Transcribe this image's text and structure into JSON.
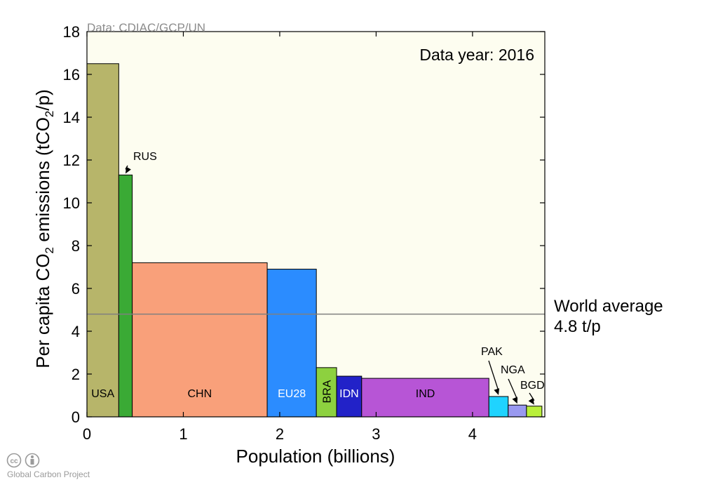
{
  "chart_data": {
    "type": "bar",
    "source_note": "Data: CDIAC/GCP/UN",
    "annotation_year": "Data year: 2016",
    "ylabel": "Per capita CO",
    "ylabel_sub": "2",
    "ylabel_mid": " emissions (tCO",
    "ylabel_sub2": "2",
    "ylabel_end": "/p)",
    "xlabel": "Population (billions)",
    "xlim": [
      0,
      4.75
    ],
    "ylim": [
      0,
      18
    ],
    "x_ticks": [
      "0",
      "1",
      "2",
      "3",
      "4"
    ],
    "y_ticks": [
      "0",
      "2",
      "4",
      "6",
      "8",
      "10",
      "12",
      "14",
      "16",
      "18"
    ],
    "world_average": {
      "value": 4.8,
      "label_line1": "World average",
      "label_line2": "4.8 t/p"
    },
    "bars": [
      {
        "name": "USA",
        "x_start": 0.0,
        "x_end": 0.33,
        "value": 16.5,
        "color": "#b7b56a",
        "label_color": "#000000"
      },
      {
        "name": "RUS",
        "x_start": 0.33,
        "x_end": 0.47,
        "value": 11.3,
        "color": "#3aaa35",
        "label_color": "#000000"
      },
      {
        "name": "CHN",
        "x_start": 0.47,
        "x_end": 1.87,
        "value": 7.2,
        "color": "#f9a07a",
        "label_color": "#000000"
      },
      {
        "name": "EU28",
        "x_start": 1.87,
        "x_end": 2.38,
        "value": 6.9,
        "color": "#2b8cff",
        "label_color": "#ffffff"
      },
      {
        "name": "BRA",
        "x_start": 2.38,
        "x_end": 2.59,
        "value": 2.3,
        "color": "#8dd13f",
        "label_color": "#000000"
      },
      {
        "name": "IDN",
        "x_start": 2.59,
        "x_end": 2.85,
        "value": 1.9,
        "color": "#2222c8",
        "label_color": "#ffffff"
      },
      {
        "name": "IND",
        "x_start": 2.85,
        "x_end": 4.17,
        "value": 1.8,
        "color": "#b755d6",
        "label_color": "#000000"
      },
      {
        "name": "PAK",
        "x_start": 4.17,
        "x_end": 4.37,
        "value": 0.95,
        "color": "#1fd3ff",
        "label_color": "#000000"
      },
      {
        "name": "NGA",
        "x_start": 4.37,
        "x_end": 4.56,
        "value": 0.55,
        "color": "#9999f0",
        "label_color": "#000000"
      },
      {
        "name": "BGD",
        "x_start": 4.56,
        "x_end": 4.72,
        "value": 0.5,
        "color": "#b9f03a",
        "label_color": "#000000"
      }
    ],
    "plot_background": "#fdfdf0",
    "average_line_color": "#808080"
  },
  "footer": {
    "credit": "Global Carbon Project"
  }
}
